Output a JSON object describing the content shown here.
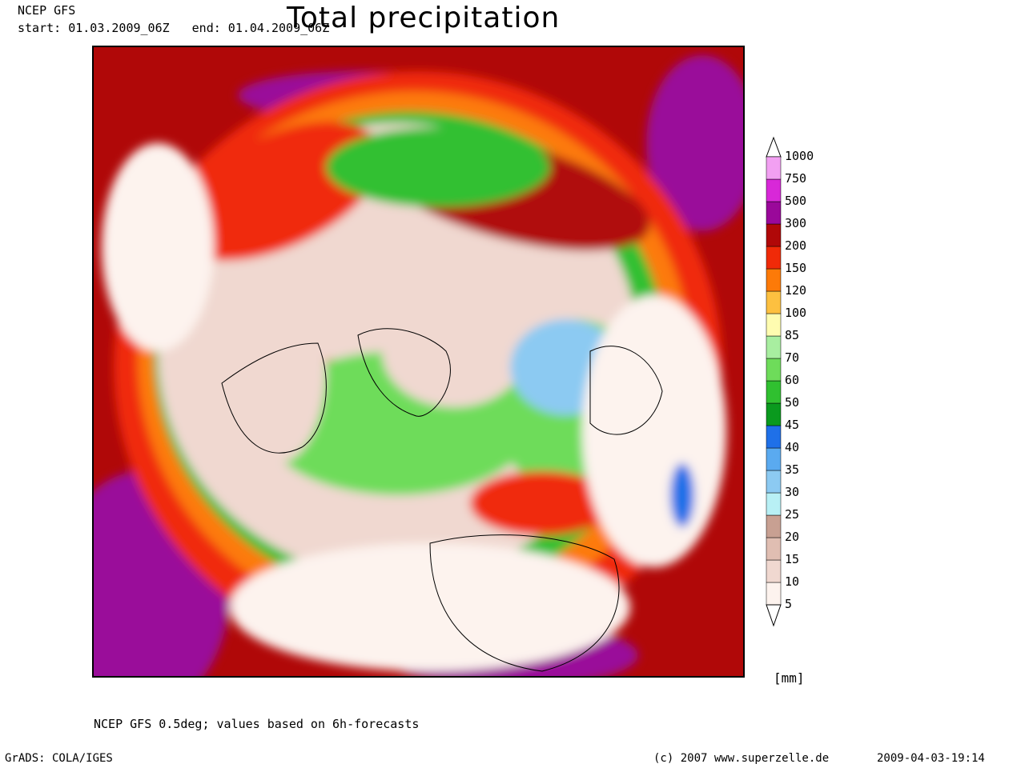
{
  "header": {
    "model": "NCEP GFS",
    "start": "start: 01.03.2009_06Z",
    "end": "end: 01.04.2009_06Z",
    "title": "Total precipitation"
  },
  "legend": {
    "unit": "[mm]",
    "levels": [
      "5",
      "10",
      "15",
      "20",
      "25",
      "30",
      "35",
      "40",
      "45",
      "50",
      "60",
      "70",
      "85",
      "100",
      "120",
      "150",
      "200",
      "300",
      "500",
      "750",
      "1000"
    ],
    "colors": [
      "#fdf3ee",
      "#f0d8d0",
      "#e0beb2",
      "#c8a092",
      "#b8f0f5",
      "#8ccaf2",
      "#5aaaf0",
      "#1f70e8",
      "#0a9a1e",
      "#30c030",
      "#6edc5a",
      "#a8eea0",
      "#fefcb0",
      "#fdc040",
      "#fd7a08",
      "#f02a08",
      "#b00808",
      "#9a089a",
      "#d828d8",
      "#f2a0f2"
    ]
  },
  "footer": {
    "note": "NCEP GFS 0.5deg; values based on 6h-forecasts",
    "software": "GrADS: COLA/IGES",
    "copyright": "(c) 2007 www.superzelle.de",
    "timestamp": "2009-04-03-19:14"
  }
}
